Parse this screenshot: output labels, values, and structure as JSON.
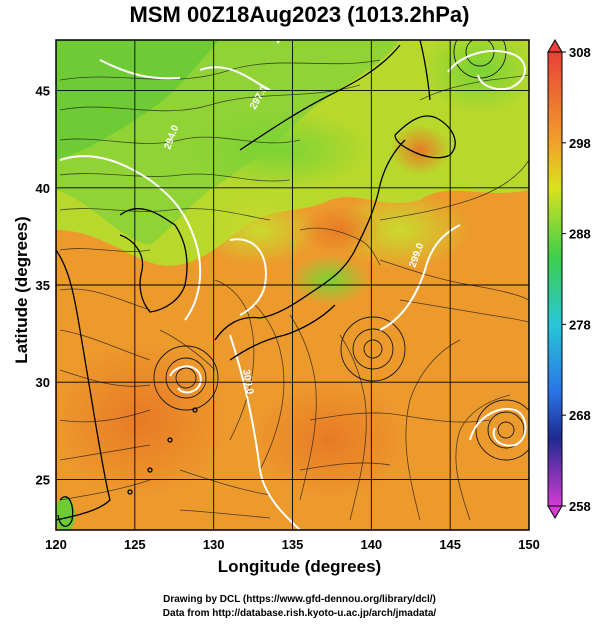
{
  "title": "MSM 00Z18Aug2023 (1013.2hPa)",
  "xlabel": "Longitude (degrees)",
  "ylabel": "Latitude  (degrees)",
  "credits": {
    "line1": "Drawing by DCL (https://www.gfd-dennou.org/library/dcl/)",
    "line2": "Data from http://database.rish.kyoto-u.ac.jp/arch/jmadata/"
  },
  "chart_data": {
    "type": "heatmap",
    "xlim": [
      120,
      150
    ],
    "ylim": [
      22.4,
      47.6
    ],
    "x_ticks": [
      120,
      125,
      130,
      135,
      140,
      145,
      150
    ],
    "y_ticks": [
      25,
      30,
      35,
      40,
      45
    ],
    "colorbar": {
      "range": [
        258,
        308
      ],
      "tick_labels": [
        308,
        298,
        288,
        278,
        268,
        258
      ]
    },
    "grid": true,
    "vortex_centers": [
      {
        "lon": 127.5,
        "lat": 30.5
      },
      {
        "lon": 140.3,
        "lat": 32.4
      },
      {
        "lon": 148.0,
        "lat": 28.3
      }
    ],
    "contour_labels": [
      "297.0",
      "294.0",
      "299.0",
      "300.0",
      "297.0"
    ]
  }
}
